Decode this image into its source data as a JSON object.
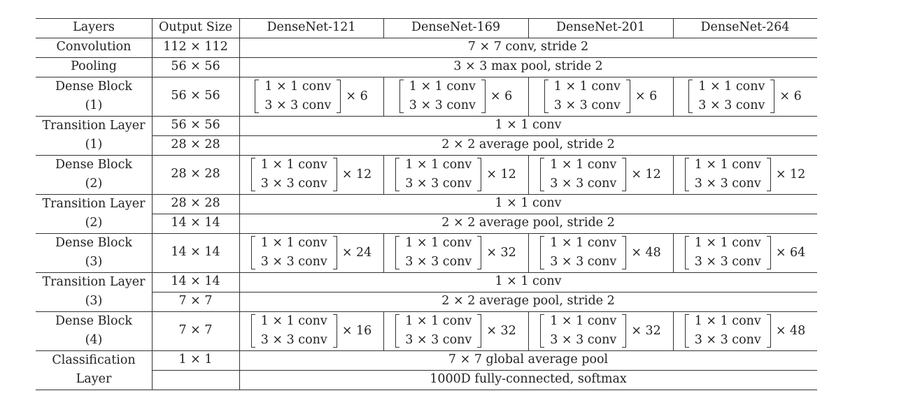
{
  "header": [
    "Layers",
    "Output Size",
    "DenseNet-121",
    "DenseNet-169",
    "DenseNet-201",
    "DenseNet-264"
  ],
  "rows": [
    {
      "layer": [
        "Convolution"
      ],
      "output": "112 × 112",
      "shared": "7 × 7 conv, stride 2"
    },
    {
      "layer": [
        "Pooling"
      ],
      "output": "56 × 56",
      "shared": "3 × 3 max pool, stride 2"
    },
    {
      "layer": [
        "Dense Block",
        "(1)"
      ],
      "output": "56 × 56",
      "block": [
        "1 × 1 conv",
        "3 × 3 conv"
      ],
      "reps": [
        "× 6",
        "× 6",
        "× 6",
        "× 6"
      ]
    },
    {
      "layer": [
        "Transition Layer",
        "(1)"
      ],
      "sub": [
        {
          "output": "56 × 56",
          "shared": "1 × 1 conv"
        },
        {
          "output": "28 × 28",
          "shared": "2 × 2 average pool, stride 2"
        }
      ]
    },
    {
      "layer": [
        "Dense Block",
        "(2)"
      ],
      "output": "28 × 28",
      "block": [
        "1 × 1 conv",
        "3 × 3 conv"
      ],
      "reps": [
        "× 12",
        "× 12",
        "× 12",
        "× 12"
      ]
    },
    {
      "layer": [
        "Transition Layer",
        "(2)"
      ],
      "sub": [
        {
          "output": "28 × 28",
          "shared": "1 × 1 conv"
        },
        {
          "output": "14 × 14",
          "shared": "2 × 2 average pool, stride 2"
        }
      ]
    },
    {
      "layer": [
        "Dense Block",
        "(3)"
      ],
      "output": "14 × 14",
      "block": [
        "1 × 1 conv",
        "3 × 3 conv"
      ],
      "reps": [
        "× 24",
        "× 32",
        "× 48",
        "× 64"
      ]
    },
    {
      "layer": [
        "Transition Layer",
        "(3)"
      ],
      "sub": [
        {
          "output": "14 × 14",
          "shared": "1 × 1 conv"
        },
        {
          "output": "7 × 7",
          "shared": "2 × 2 average pool, stride 2"
        }
      ]
    },
    {
      "layer": [
        "Dense Block",
        "(4)"
      ],
      "output": "7 × 7",
      "block": [
        "1 × 1 conv",
        "3 × 3 conv"
      ],
      "reps": [
        "× 16",
        "× 32",
        "× 32",
        "× 48"
      ]
    },
    {
      "layer": [
        "Classification",
        "Layer"
      ],
      "sub": [
        {
          "output": "1 × 1",
          "shared": "7 × 7 global average pool"
        },
        {
          "output": "",
          "shared": "1000D fully-connected, softmax"
        }
      ]
    }
  ]
}
